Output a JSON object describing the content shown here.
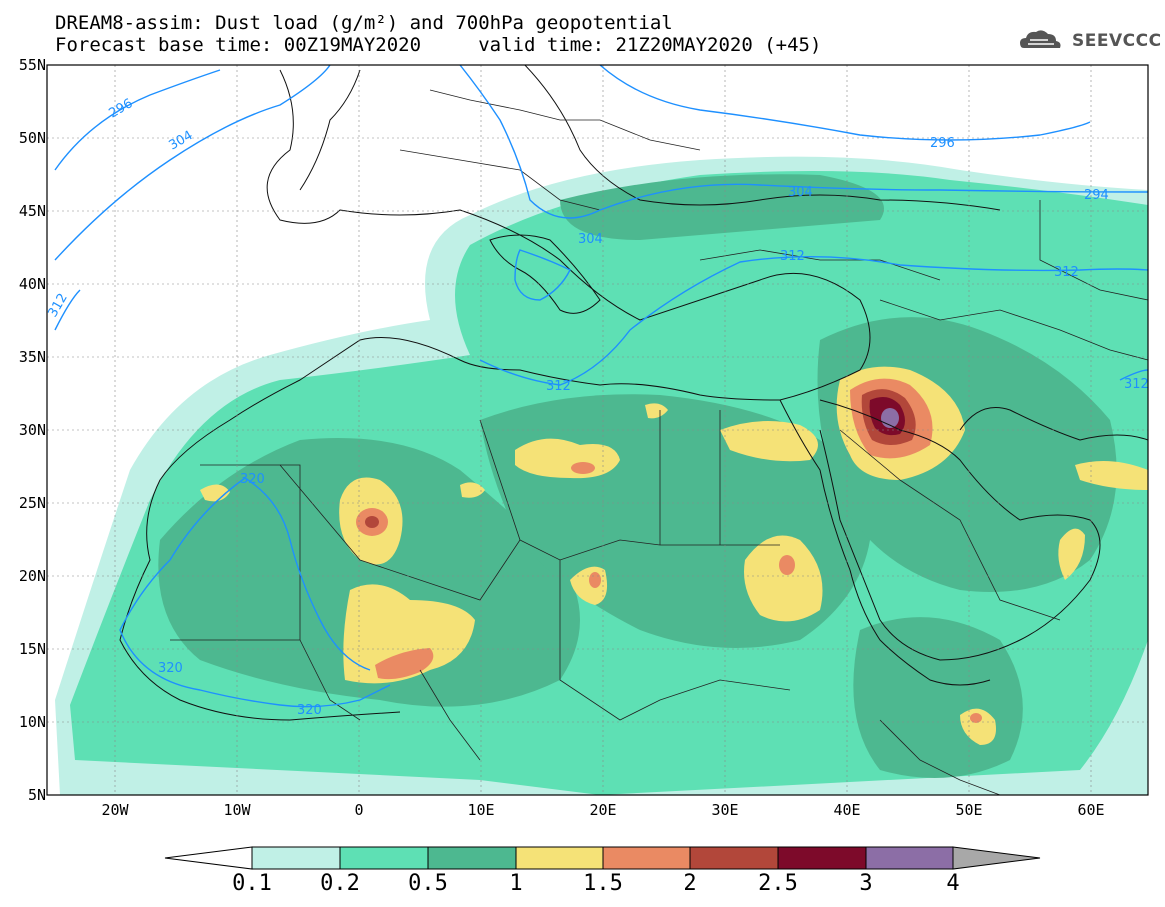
{
  "title": {
    "line1": "DREAM8-assim: Dust load (g/m²) and 700hPa geopotential",
    "line2": "Forecast base time: 00Z19MAY2020     valid time: 21Z20MAY2020 (+45)"
  },
  "logo": {
    "text": "SEEVCCC",
    "icon": "cloud-icon"
  },
  "axes": {
    "lat_labels": [
      "55N",
      "50N",
      "45N",
      "40N",
      "35N",
      "30N",
      "25N",
      "20N",
      "15N",
      "10N",
      "5N"
    ],
    "lon_labels": [
      "20W",
      "10W",
      "0",
      "10E",
      "20E",
      "30E",
      "40E",
      "50E",
      "60E"
    ],
    "lat_range": [
      5,
      55
    ],
    "lon_range": [
      -25,
      65
    ]
  },
  "contours": {
    "labels": [
      "296",
      "304",
      "312",
      "296",
      "304",
      "304",
      "312",
      "312",
      "312",
      "294",
      "312",
      "320",
      "320",
      "320",
      "312"
    ]
  },
  "colorbar": {
    "labels": [
      "0.1",
      "0.2",
      "0.5",
      "1",
      "1.5",
      "2",
      "2.5",
      "3",
      "4"
    ],
    "colors": [
      "#ffffff",
      "#c0f0e6",
      "#5ee0b4",
      "#4db890",
      "#f5e277",
      "#ea8a63",
      "#b2473a",
      "#7d0a2a",
      "#8c6ea6",
      "#a8a8a8"
    ]
  },
  "colors": {
    "light": "#c0f0e6",
    "medium": "#5ee0b4",
    "dark": "#4db890",
    "yellow": "#f5e277",
    "orange": "#ea8a63",
    "red": "#b2473a",
    "maroon": "#7d0a2a",
    "purple": "#8c6ea6",
    "contour": "#1e90ff"
  }
}
